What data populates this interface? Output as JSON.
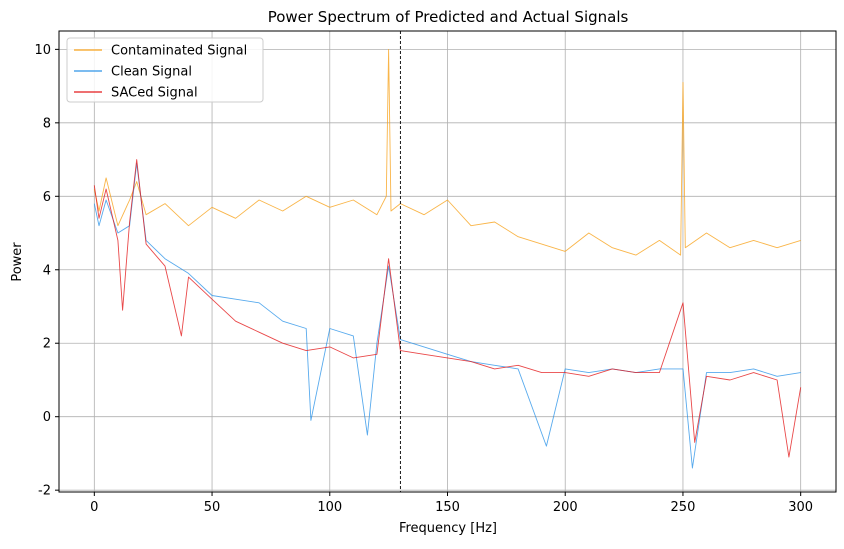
{
  "chart_data": {
    "type": "line",
    "title": "Power Spectrum of Predicted and Actual Signals",
    "xlabel": "Frequency [Hz]",
    "ylabel": "Power",
    "xlim": [
      -15,
      315
    ],
    "ylim": [
      -2.05,
      10.5
    ],
    "xticks": [
      0,
      50,
      100,
      150,
      200,
      250,
      300
    ],
    "yticks": [
      -2,
      0,
      2,
      4,
      6,
      8,
      10
    ],
    "grid": true,
    "legend_position": "top-left",
    "vline": {
      "x": 130,
      "style": "dashed",
      "color": "#000000"
    },
    "series": [
      {
        "name": "Contaminated Signal",
        "color": "#f7a21b",
        "x": [
          0,
          2,
          5,
          10,
          15,
          18,
          22,
          30,
          40,
          50,
          60,
          70,
          80,
          90,
          100,
          110,
          120,
          124,
          125,
          126,
          130,
          140,
          150,
          160,
          170,
          180,
          190,
          200,
          210,
          220,
          230,
          240,
          249,
          250,
          251,
          260,
          270,
          280,
          290,
          300
        ],
        "y": [
          6.2,
          5.6,
          6.5,
          5.2,
          5.9,
          6.4,
          5.5,
          5.8,
          5.2,
          5.7,
          5.4,
          5.9,
          5.6,
          6.0,
          5.7,
          5.9,
          5.5,
          6.0,
          10.0,
          5.6,
          5.8,
          5.5,
          5.9,
          5.2,
          5.3,
          4.9,
          4.7,
          4.5,
          5.0,
          4.6,
          4.4,
          4.8,
          4.4,
          9.1,
          4.6,
          5.0,
          4.6,
          4.8,
          4.6,
          4.8
        ]
      },
      {
        "name": "Clean Signal",
        "color": "#2e95e8",
        "x": [
          0,
          2,
          5,
          10,
          15,
          18,
          22,
          30,
          40,
          50,
          60,
          70,
          80,
          90,
          92,
          100,
          110,
          116,
          120,
          125,
          130,
          140,
          150,
          160,
          170,
          180,
          192,
          200,
          210,
          220,
          230,
          240,
          250,
          254,
          260,
          270,
          280,
          290,
          300
        ],
        "y": [
          5.8,
          5.2,
          5.9,
          5.0,
          5.2,
          6.9,
          4.8,
          4.3,
          3.9,
          3.3,
          3.2,
          3.1,
          2.6,
          2.4,
          -0.1,
          2.4,
          2.2,
          -0.5,
          2.0,
          4.1,
          2.1,
          1.9,
          1.7,
          1.5,
          1.4,
          1.3,
          -0.8,
          1.3,
          1.2,
          1.3,
          1.2,
          1.3,
          1.3,
          -1.4,
          1.2,
          1.2,
          1.3,
          1.1,
          1.2
        ]
      },
      {
        "name": "SACed Signal",
        "color": "#e31a1c",
        "x": [
          0,
          2,
          5,
          10,
          12,
          15,
          18,
          22,
          30,
          37,
          40,
          50,
          60,
          70,
          80,
          90,
          100,
          110,
          120,
          125,
          130,
          140,
          150,
          160,
          170,
          180,
          190,
          200,
          210,
          220,
          230,
          240,
          250,
          255,
          260,
          270,
          280,
          290,
          295,
          300
        ],
        "y": [
          6.3,
          5.4,
          6.2,
          4.8,
          2.9,
          5.3,
          7.0,
          4.7,
          4.1,
          2.2,
          3.8,
          3.2,
          2.6,
          2.3,
          2.0,
          1.8,
          1.9,
          1.6,
          1.7,
          4.3,
          1.8,
          1.7,
          1.6,
          1.5,
          1.3,
          1.4,
          1.2,
          1.2,
          1.1,
          1.3,
          1.2,
          1.2,
          3.1,
          -0.7,
          1.1,
          1.0,
          1.2,
          1.0,
          -1.1,
          0.8
        ]
      }
    ]
  }
}
